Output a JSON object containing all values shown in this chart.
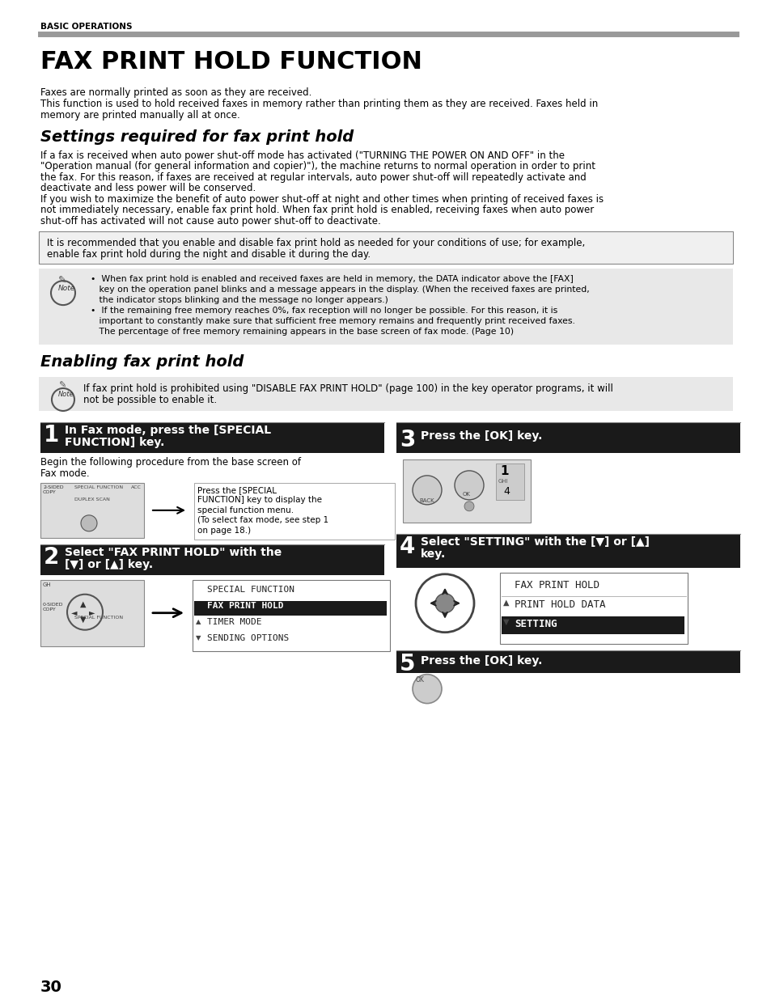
{
  "bg_color": "#ffffff",
  "header_text": "BASIC OPERATIONS",
  "header_line_color": "#999999",
  "title": "FAX PRINT HOLD FUNCTION",
  "intro_lines": [
    "Faxes are normally printed as soon as they are received.",
    "This function is used to hold received faxes in memory rather than printing them as they are received. Faxes held in",
    "memory are printed manually all at once."
  ],
  "section1_title": "Settings required for fax print hold",
  "section1_body": [
    "If a fax is received when auto power shut-off mode has activated (\"TURNING THE POWER ON AND OFF\" in the",
    "\"Operation manual (for general information and copier)\"), the machine returns to normal operation in order to print",
    "the fax. For this reason, if faxes are received at regular intervals, auto power shut-off will repeatedly activate and",
    "deactivate and less power will be conserved.",
    "If you wish to maximize the benefit of auto power shut-off at night and other times when printing of received faxes is",
    "not immediately necessary, enable fax print hold. When fax print hold is enabled, receiving faxes when auto power",
    "shut-off has activated will not cause auto power shut-off to deactivate."
  ],
  "callout_box_text": [
    "It is recommended that you enable and disable fax print hold as needed for your conditions of use; for example,",
    "enable fax print hold during the night and disable it during the day."
  ],
  "note_box1_lines": [
    "  •  When fax print hold is enabled and received faxes are held in memory, the DATA indicator above the [FAX]",
    "     key on the operation panel blinks and a message appears in the display. (When the received faxes are printed,",
    "     the indicator stops blinking and the message no longer appears.)",
    "  •  If the remaining free memory reaches 0%, fax reception will no longer be possible. For this reason, it is",
    "     important to constantly make sure that sufficient free memory remains and frequently print received faxes.",
    "     The percentage of free memory remaining appears in the base screen of fax mode. (Page 10)"
  ],
  "section2_title": "Enabling fax print hold",
  "note_box2_lines": [
    "If fax print hold is prohibited using \"DISABLE FAX PRINT HOLD\" (page 100) in the key operator programs, it will",
    "not be possible to enable it."
  ],
  "step1_title_line1": "In Fax mode, press the [SPECIAL",
  "step1_title_line2": "FUNCTION] key.",
  "step1_body": [
    "Begin the following procedure from the base screen of",
    "Fax mode."
  ],
  "step1_note": [
    "Press the [SPECIAL",
    "FUNCTION] key to display the",
    "special function menu.",
    "(To select fax mode, see step 1",
    "on page 18.)"
  ],
  "step2_title_line1": "Select \"FAX PRINT HOLD\" with the",
  "step2_title_line2": "[▼] or [▲] key.",
  "step2_menu": [
    "SPECIAL FUNCTION",
    "FAX PRINT HOLD",
    "TIMER MODE",
    "SENDING OPTIONS"
  ],
  "step2_menu_selected": 1,
  "step3_title": "Press the [OK] key.",
  "step4_title_line1": "Select \"SETTING\" with the [▼] or [▲]",
  "step4_title_line2": "key.",
  "step4_menu": [
    "FAX PRINT HOLD",
    "PRINT HOLD DATA",
    "SETTING"
  ],
  "step4_menu_selected": 2,
  "step5_title": "Press the [OK] key.",
  "page_number": "30",
  "note_icon_text": "Note",
  "step_bar_color": "#1a1a1a",
  "gray_bg": "#e8e8e8",
  "callout_bg": "#f0f0f0"
}
